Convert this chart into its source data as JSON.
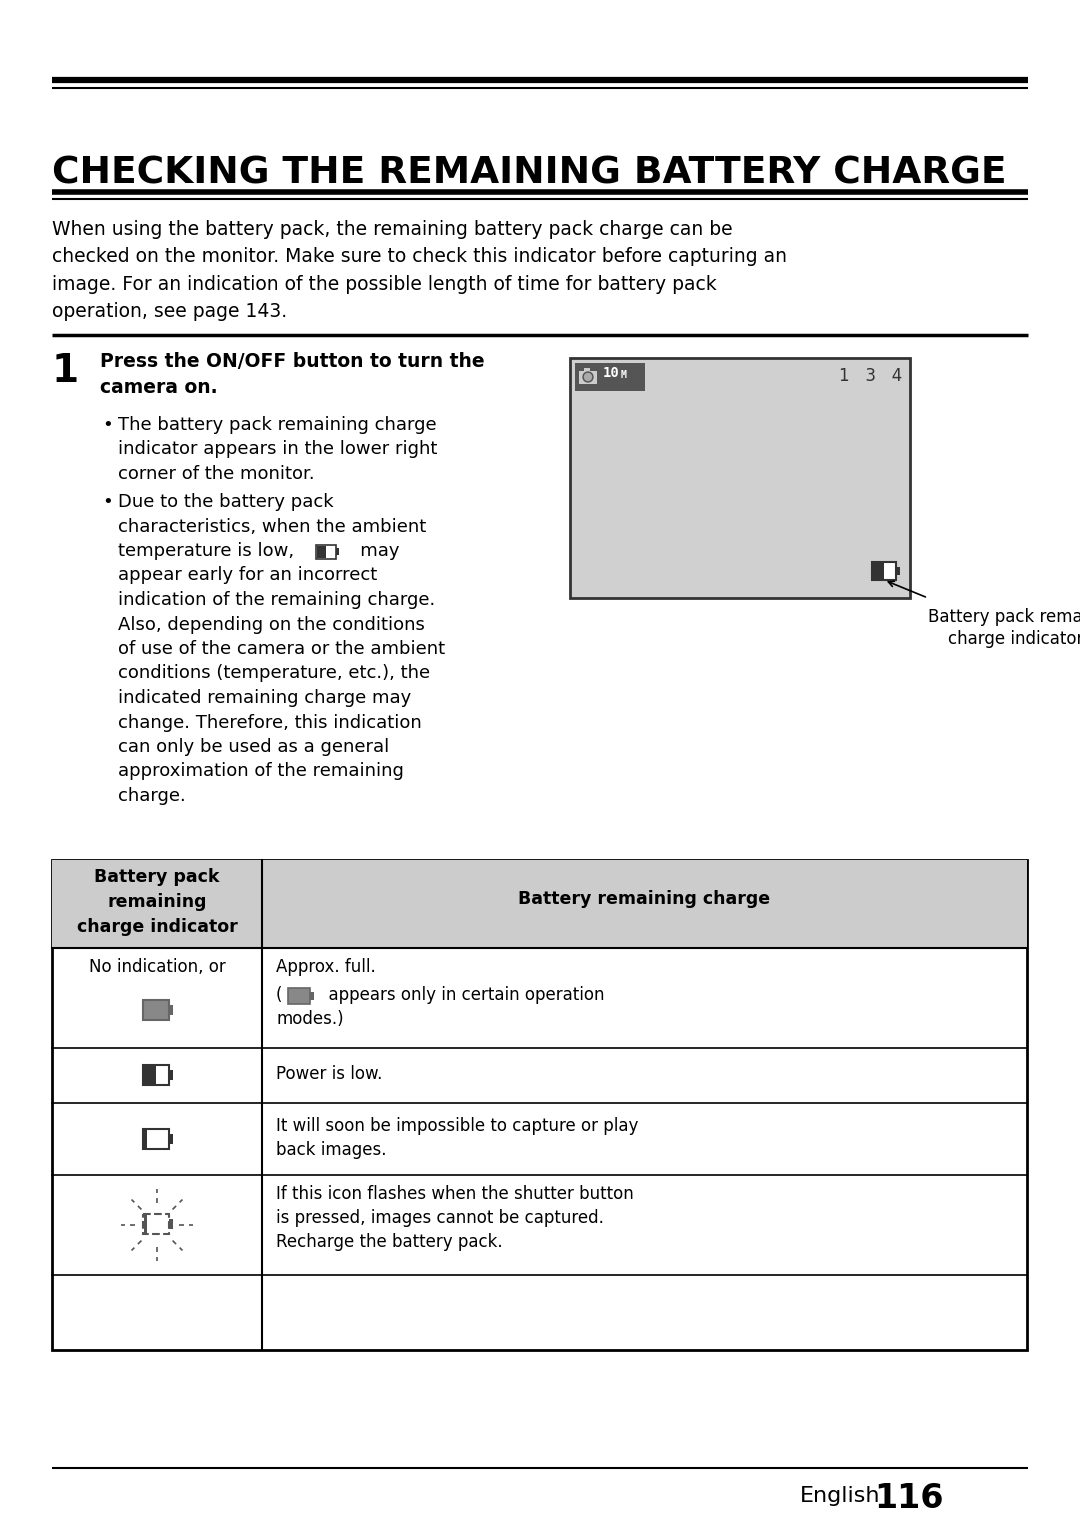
{
  "title": "CHECKING THE REMAINING BATTERY CHARGE",
  "bg_color": "#ffffff",
  "intro_text": "When using the battery pack, the remaining battery pack charge can be\nchecked on the monitor. Make sure to check this indicator before capturing an\nimage. For an indication of the possible length of time for battery pack\noperation, see page 143.",
  "step_number": "1",
  "step_bold_line1": "Press the ON/OFF button to turn the",
  "step_bold_line2": "camera on.",
  "bullet1_line1": "The battery pack remaining charge",
  "bullet1_line2": "indicator appears in the lower right",
  "bullet1_line3": "corner of the monitor.",
  "bullet2_line1": "Due to the battery pack",
  "bullet2_line2": "characteristics, when the ambient",
  "bullet2_line3": "temperature is low,",
  "bullet2_line3b": "   may",
  "bullet2_line4": "appear early for an incorrect",
  "bullet2_line5": "indication of the remaining charge.",
  "bullet2_line6": "Also, depending on the conditions",
  "bullet2_line7": "of use of the camera or the ambient",
  "bullet2_line8": "conditions (temperature, etc.), the",
  "bullet2_line9": "indicated remaining charge may",
  "bullet2_line10": "change. Therefore, this indication",
  "bullet2_line11": "can only be used as a general",
  "bullet2_line12": "approximation of the remaining",
  "bullet2_line13": "charge.",
  "cam_label_line1": "Battery pack remaining",
  "cam_label_line2": "charge indicator",
  "table_header_left": "Battery pack\nremaining\ncharge indicator",
  "table_header_right": "Battery remaining charge",
  "row1_left_text": "No indication, or",
  "row1_right_line1": "Approx. full.",
  "row1_right_line2": "appears only in certain operation",
  "row1_right_line3": "modes.)",
  "row2_right": "Power is low.",
  "row3_right_line1": "It will soon be impossible to capture or play",
  "row3_right_line2": "back images.",
  "row4_right_line1": "If this icon flashes when the shutter button",
  "row4_right_line2": "is pressed, images cannot be captured.",
  "row4_right_line3": "Recharge the battery pack.",
  "footer_text": "English",
  "page_num": "116"
}
